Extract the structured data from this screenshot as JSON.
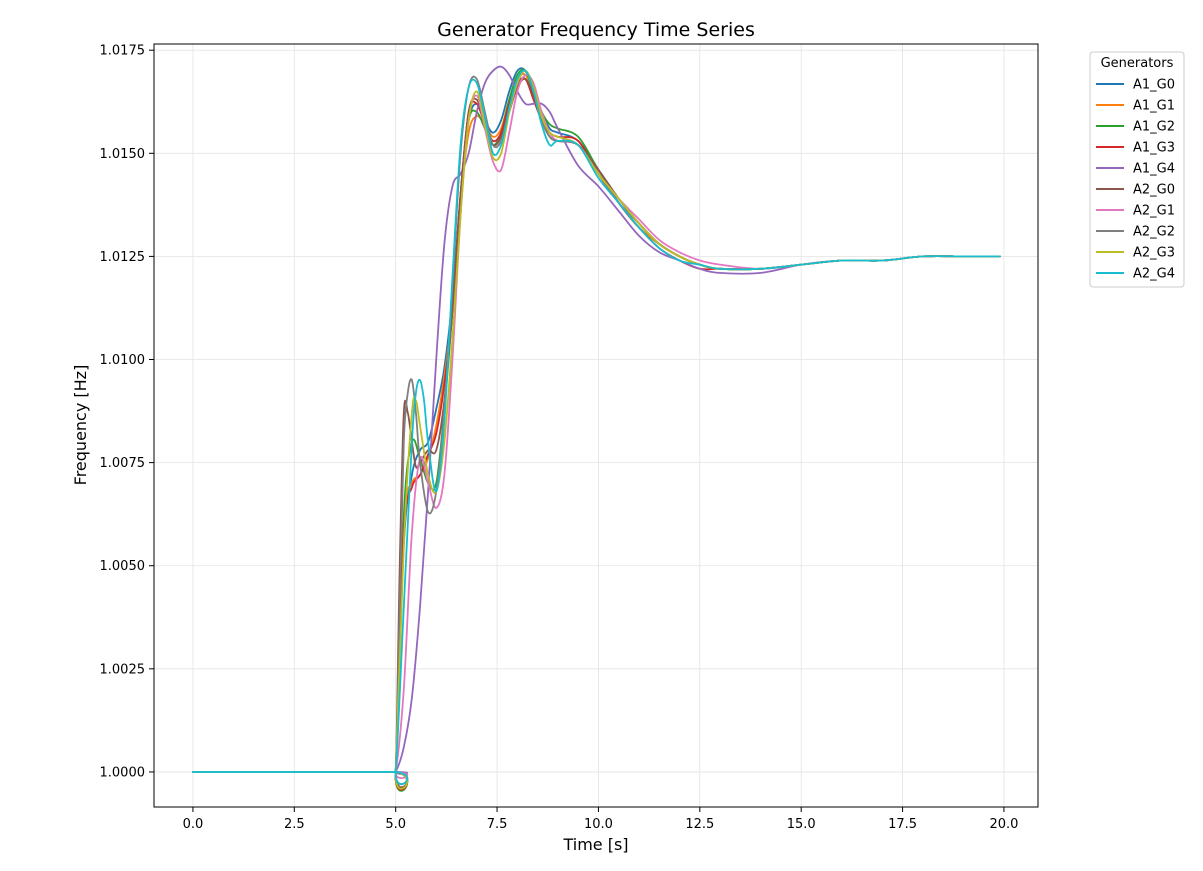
{
  "chart_data": {
    "type": "line",
    "title": "Generator Frequency Time Series",
    "xlabel": "Time [s]",
    "ylabel": "Frequency [Hz]",
    "xlim": [
      -0.96,
      20.84
    ],
    "ylim": [
      0.99915,
      1.01765
    ],
    "xticks": [
      0.0,
      2.5,
      5.0,
      7.5,
      10.0,
      12.5,
      15.0,
      17.5,
      20.0
    ],
    "xtick_labels": [
      "0.0",
      "2.5",
      "5.0",
      "7.5",
      "10.0",
      "12.5",
      "15.0",
      "17.5",
      "20.0"
    ],
    "yticks": [
      1.0,
      1.0025,
      1.005,
      1.0075,
      1.01,
      1.0125,
      1.015,
      1.0175
    ],
    "ytick_labels": [
      "1.0000",
      "1.0025",
      "1.0050",
      "1.0075",
      "1.0100",
      "1.0125",
      "1.0150",
      "1.0175"
    ],
    "grid": true,
    "legend": {
      "title": "Generators",
      "placement": "outside-top-right"
    },
    "series": [
      {
        "name": "A1_G0",
        "color": "#1f77b4",
        "x": [
          0,
          4.9,
          5.0,
          5.2,
          5.4,
          5.6,
          5.8,
          6.0,
          6.2,
          6.4,
          6.6,
          6.8,
          7.0,
          7.2,
          7.4,
          7.6,
          7.8,
          8.0,
          8.2,
          8.4,
          8.6,
          8.8,
          9.0,
          9.5,
          10.0,
          10.5,
          11.0,
          11.5,
          12.0,
          12.5,
          13.0,
          14.0,
          15.0,
          16.0,
          17.0,
          18.0,
          19.0,
          19.9
        ],
        "values": [
          1.0,
          1.0,
          1.0,
          1.0055,
          1.0072,
          1.0078,
          1.008,
          1.0088,
          1.0098,
          1.0115,
          1.014,
          1.0158,
          1.0162,
          1.0158,
          1.0155,
          1.0158,
          1.0165,
          1.017,
          1.017,
          1.0165,
          1.016,
          1.0156,
          1.0155,
          1.0153,
          1.0146,
          1.0138,
          1.0132,
          1.0128,
          1.0125,
          1.0123,
          1.0122,
          1.0122,
          1.0123,
          1.0124,
          1.0124,
          1.0125,
          1.0125,
          1.0125
        ]
      },
      {
        "name": "A1_G1",
        "color": "#ff7f0e",
        "x": [
          0,
          4.9,
          5.0,
          5.2,
          5.4,
          5.6,
          5.8,
          6.0,
          6.2,
          6.4,
          6.6,
          6.8,
          7.0,
          7.2,
          7.4,
          7.6,
          7.8,
          8.0,
          8.2,
          8.4,
          8.6,
          8.8,
          9.0,
          9.5,
          10.0,
          10.5,
          11.0,
          11.5,
          12.0,
          12.5,
          13.0,
          14.0,
          15.0,
          16.0,
          17.0,
          18.0,
          19.0,
          19.9
        ],
        "values": [
          1.0,
          1.0,
          1.0,
          1.006,
          1.007,
          1.0072,
          1.0076,
          1.0084,
          1.0096,
          1.0112,
          1.0138,
          1.0155,
          1.0159,
          1.0157,
          1.0154,
          1.0156,
          1.0163,
          1.0168,
          1.0169,
          1.0164,
          1.0158,
          1.0154,
          1.0153,
          1.0152,
          1.0145,
          1.0138,
          1.0132,
          1.0128,
          1.0125,
          1.0123,
          1.0122,
          1.0122,
          1.0123,
          1.0124,
          1.0124,
          1.0125,
          1.0125,
          1.0125
        ]
      },
      {
        "name": "A1_G2",
        "color": "#2ca02c",
        "x": [
          0,
          4.9,
          5.0,
          5.2,
          5.4,
          5.6,
          5.8,
          6.0,
          6.2,
          6.4,
          6.6,
          6.8,
          7.0,
          7.2,
          7.4,
          7.6,
          7.8,
          8.0,
          8.2,
          8.4,
          8.6,
          8.8,
          9.0,
          9.5,
          10.0,
          10.5,
          11.0,
          11.5,
          12.0,
          12.5,
          13.0,
          14.0,
          15.0,
          16.0,
          17.0,
          18.0,
          19.0,
          19.9
        ],
        "values": [
          1.0,
          1.0,
          1.0,
          1.0062,
          1.008,
          1.0076,
          1.007,
          1.007,
          1.0088,
          1.0112,
          1.014,
          1.0158,
          1.016,
          1.0156,
          1.0152,
          1.0155,
          1.0163,
          1.0169,
          1.017,
          1.0165,
          1.016,
          1.0157,
          1.0156,
          1.0154,
          1.0146,
          1.0139,
          1.0133,
          1.0128,
          1.0125,
          1.0123,
          1.0122,
          1.0122,
          1.0123,
          1.0124,
          1.0124,
          1.0125,
          1.0125,
          1.0125
        ]
      },
      {
        "name": "A1_G3",
        "color": "#d62728",
        "x": [
          0,
          4.9,
          5.0,
          5.2,
          5.4,
          5.6,
          5.8,
          6.0,
          6.2,
          6.4,
          6.6,
          6.8,
          7.0,
          7.2,
          7.4,
          7.6,
          7.8,
          8.0,
          8.2,
          8.4,
          8.6,
          8.8,
          9.0,
          9.5,
          10.0,
          10.5,
          11.0,
          11.5,
          12.0,
          12.5,
          13.0,
          14.0,
          15.0,
          16.0,
          17.0,
          18.0,
          19.0,
          19.9
        ],
        "values": [
          1.0,
          1.0,
          1.0,
          1.0058,
          1.0069,
          1.0072,
          1.0077,
          1.0082,
          1.0094,
          1.0112,
          1.014,
          1.016,
          1.0162,
          1.0157,
          1.0153,
          1.0155,
          1.0162,
          1.0167,
          1.0168,
          1.0163,
          1.0158,
          1.0155,
          1.0154,
          1.0153,
          1.0145,
          1.0138,
          1.0132,
          1.0127,
          1.0124,
          1.0122,
          1.0122,
          1.0122,
          1.0123,
          1.0124,
          1.0124,
          1.0125,
          1.0125,
          1.0125
        ]
      },
      {
        "name": "A1_G4",
        "color": "#9467bd",
        "x": [
          0,
          4.9,
          5.0,
          5.2,
          5.4,
          5.6,
          5.8,
          6.0,
          6.2,
          6.4,
          6.6,
          6.8,
          7.0,
          7.2,
          7.4,
          7.6,
          7.8,
          8.0,
          8.2,
          8.4,
          8.6,
          8.8,
          9.0,
          9.5,
          10.0,
          10.5,
          11.0,
          11.5,
          12.0,
          12.5,
          13.0,
          14.0,
          15.0,
          16.0,
          17.0,
          18.0,
          19.0,
          19.9
        ],
        "values": [
          1.0,
          1.0,
          1.0,
          1.0006,
          1.0018,
          1.004,
          1.0068,
          1.01,
          1.0128,
          1.0142,
          1.0145,
          1.015,
          1.016,
          1.0167,
          1.017,
          1.0171,
          1.0169,
          1.0165,
          1.0162,
          1.0162,
          1.0162,
          1.016,
          1.0156,
          1.0147,
          1.0142,
          1.0136,
          1.013,
          1.0126,
          1.0124,
          1.0122,
          1.0121,
          1.0121,
          1.0123,
          1.0124,
          1.0124,
          1.0125,
          1.0125,
          1.0125
        ]
      },
      {
        "name": "A2_G0",
        "color": "#8c564b",
        "x": [
          0,
          4.9,
          5.0,
          5.1,
          5.2,
          5.3,
          5.4,
          5.5,
          5.6,
          5.8,
          6.0,
          6.2,
          6.4,
          6.6,
          6.8,
          7.0,
          7.2,
          7.4,
          7.6,
          7.8,
          8.0,
          8.2,
          8.4,
          8.6,
          8.8,
          9.0,
          9.5,
          10.0,
          10.5,
          11.0,
          11.5,
          12.0,
          12.5,
          13.0,
          14.0,
          15.0,
          16.0,
          17.0,
          18.0,
          19.0,
          19.9
        ],
        "values": [
          1.0,
          1.0,
          1.0,
          1.005,
          1.0087,
          1.0087,
          1.008,
          1.0074,
          1.0075,
          1.0078,
          1.0078,
          1.009,
          1.0112,
          1.014,
          1.016,
          1.0163,
          1.0157,
          1.0152,
          1.0154,
          1.016,
          1.0166,
          1.0168,
          1.0164,
          1.0158,
          1.0154,
          1.0153,
          1.0152,
          1.0146,
          1.0139,
          1.0133,
          1.0128,
          1.0125,
          1.0123,
          1.0122,
          1.0122,
          1.0123,
          1.0124,
          1.0124,
          1.0125,
          1.0125,
          1.0125
        ]
      },
      {
        "name": "A2_G1",
        "color": "#e377c2",
        "x": [
          0,
          4.9,
          5.0,
          5.2,
          5.4,
          5.6,
          5.8,
          6.0,
          6.2,
          6.4,
          6.6,
          6.8,
          7.0,
          7.2,
          7.4,
          7.6,
          7.8,
          8.0,
          8.2,
          8.4,
          8.6,
          8.8,
          9.0,
          9.5,
          10.0,
          10.5,
          11.0,
          11.5,
          12.0,
          12.5,
          13.0,
          14.0,
          15.0,
          16.0,
          17.0,
          18.0,
          19.0,
          19.9
        ],
        "values": [
          1.0,
          1.0,
          1.0,
          1.002,
          1.0058,
          1.0076,
          1.007,
          1.0064,
          1.0072,
          1.01,
          1.0135,
          1.0158,
          1.0164,
          1.0156,
          1.0148,
          1.0146,
          1.0155,
          1.0165,
          1.0169,
          1.0167,
          1.016,
          1.0155,
          1.0153,
          1.0152,
          1.0145,
          1.0139,
          1.0134,
          1.0129,
          1.0126,
          1.0124,
          1.0123,
          1.0122,
          1.0123,
          1.0124,
          1.0124,
          1.0125,
          1.0125,
          1.0125
        ]
      },
      {
        "name": "A2_G2",
        "color": "#7f7f7f",
        "x": [
          0,
          4.9,
          5.0,
          5.1,
          5.2,
          5.3,
          5.4,
          5.5,
          5.6,
          5.8,
          6.0,
          6.2,
          6.4,
          6.6,
          6.8,
          7.0,
          7.2,
          7.4,
          7.6,
          7.8,
          8.0,
          8.2,
          8.4,
          8.6,
          8.8,
          9.0,
          9.5,
          10.0,
          10.5,
          11.0,
          11.5,
          12.0,
          12.5,
          13.0,
          14.0,
          15.0,
          16.0,
          17.0,
          18.0,
          19.0,
          19.9
        ],
        "values": [
          1.0,
          1.0,
          1.0,
          1.004,
          1.008,
          1.0092,
          1.0095,
          1.0087,
          1.0075,
          1.0063,
          1.0068,
          1.0088,
          1.0118,
          1.015,
          1.0166,
          1.0168,
          1.016,
          1.0152,
          1.0153,
          1.016,
          1.0167,
          1.017,
          1.0166,
          1.0158,
          1.0154,
          1.0153,
          1.0152,
          1.0145,
          1.0138,
          1.0133,
          1.0128,
          1.0125,
          1.0123,
          1.0122,
          1.0122,
          1.0123,
          1.0124,
          1.0124,
          1.0125,
          1.0125,
          1.0125
        ]
      },
      {
        "name": "A2_G3",
        "color": "#bcbd22",
        "x": [
          0,
          4.9,
          5.0,
          5.2,
          5.4,
          5.5,
          5.6,
          5.8,
          6.0,
          6.2,
          6.4,
          6.6,
          6.8,
          7.0,
          7.2,
          7.4,
          7.6,
          7.8,
          8.0,
          8.2,
          8.4,
          8.6,
          8.8,
          9.0,
          9.5,
          10.0,
          10.5,
          11.0,
          11.5,
          12.0,
          12.5,
          13.0,
          14.0,
          15.0,
          16.0,
          17.0,
          18.0,
          19.0,
          19.9
        ],
        "values": [
          1.0,
          1.0,
          1.0,
          1.0055,
          1.0087,
          1.009,
          1.0084,
          1.0072,
          1.0068,
          1.008,
          1.0105,
          1.0135,
          1.0158,
          1.0165,
          1.0157,
          1.0149,
          1.015,
          1.016,
          1.0167,
          1.017,
          1.0166,
          1.0159,
          1.0155,
          1.0154,
          1.0152,
          1.0145,
          1.0139,
          1.0133,
          1.0128,
          1.0125,
          1.0123,
          1.0122,
          1.0122,
          1.0123,
          1.0124,
          1.0124,
          1.0125,
          1.0125,
          1.0125
        ]
      },
      {
        "name": "A2_G4",
        "color": "#17becf",
        "x": [
          0,
          4.9,
          5.0,
          5.2,
          5.4,
          5.5,
          5.6,
          5.7,
          5.8,
          6.0,
          6.2,
          6.4,
          6.6,
          6.8,
          7.0,
          7.2,
          7.4,
          7.6,
          7.8,
          8.0,
          8.2,
          8.4,
          8.6,
          8.8,
          9.0,
          9.5,
          10.0,
          10.5,
          11.0,
          11.5,
          12.0,
          12.5,
          13.0,
          14.0,
          15.0,
          16.0,
          17.0,
          18.0,
          19.0,
          19.9
        ],
        "values": [
          1.0,
          1.0,
          1.0,
          1.004,
          1.008,
          1.0092,
          1.0095,
          1.009,
          1.008,
          1.0068,
          1.0085,
          1.012,
          1.0152,
          1.0166,
          1.0167,
          1.0159,
          1.015,
          1.0152,
          1.0161,
          1.0168,
          1.017,
          1.0165,
          1.0157,
          1.0152,
          1.0153,
          1.0152,
          1.0144,
          1.0138,
          1.0132,
          1.0127,
          1.0124,
          1.0123,
          1.0122,
          1.0122,
          1.0123,
          1.0124,
          1.0124,
          1.0125,
          1.0125,
          1.0125
        ]
      }
    ]
  }
}
